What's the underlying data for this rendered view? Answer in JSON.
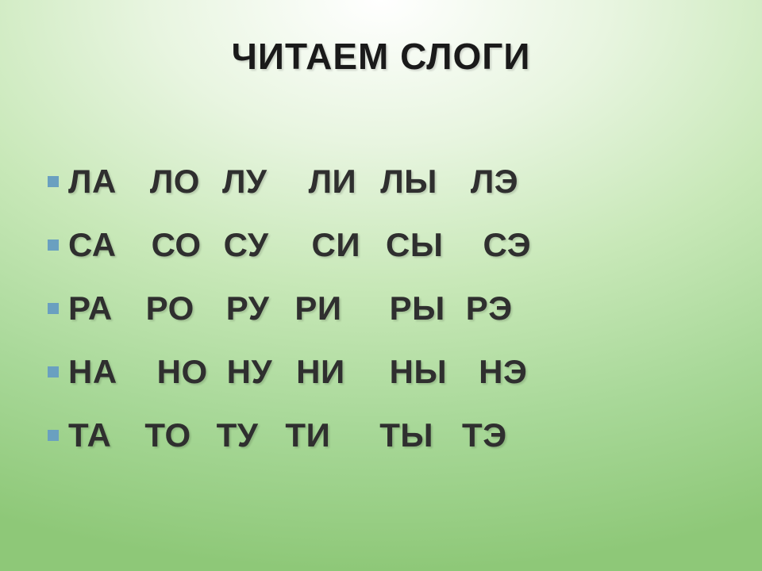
{
  "title": {
    "text": "ЧИТАЕМ СЛОГИ",
    "color": "#1a1a1a",
    "fontsize": 46
  },
  "bullet": {
    "color": "#6aa0c0",
    "size": 14
  },
  "rows_fontsize": 42,
  "rows_color": "#2f2f2f",
  "rows": [
    {
      "cells": [
        "ЛА",
        "ЛО",
        "ЛУ",
        "ЛИ",
        "ЛЫ",
        "ЛЭ"
      ],
      "gaps_after": [
        42,
        28,
        52,
        30,
        42,
        0
      ]
    },
    {
      "cells": [
        "СА",
        "СО",
        "СУ",
        "СИ",
        "СЫ",
        "СЭ"
      ],
      "gaps_after": [
        44,
        28,
        54,
        32,
        50,
        0
      ]
    },
    {
      "cells": [
        "РА",
        "РО",
        "РУ",
        "РИ",
        "РЫ",
        "РЭ"
      ],
      "gaps_after": [
        42,
        40,
        32,
        60,
        26,
        0
      ]
    },
    {
      "cells": [
        "НА",
        "НО",
        "НУ",
        "НИ",
        "НЫ",
        "НЭ"
      ],
      "gaps_after": [
        50,
        24,
        30,
        56,
        40,
        0
      ]
    },
    {
      "cells": [
        "ТА",
        "ТО",
        "ТУ",
        "ТИ",
        "ТЫ",
        "ТЭ"
      ],
      "gaps_after": [
        42,
        32,
        34,
        62,
        36,
        0
      ]
    }
  ],
  "background": {
    "gradient_stops": [
      "#ffffff",
      "#e8f5e0",
      "#c8e8b8",
      "#a8d898",
      "#8ec878"
    ]
  }
}
